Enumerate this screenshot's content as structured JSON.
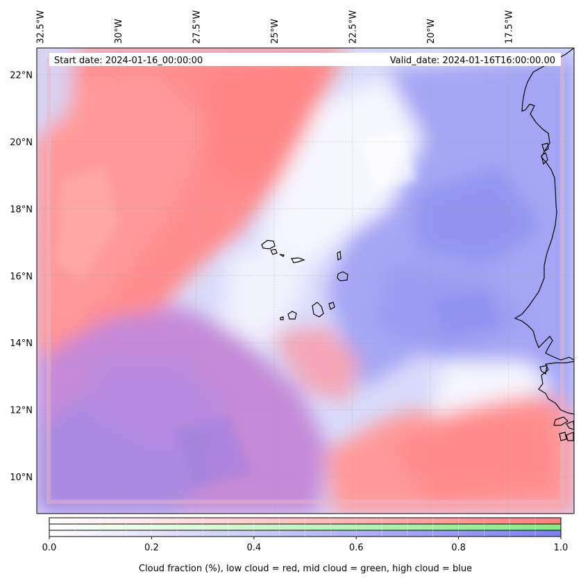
{
  "map": {
    "start_date": "Start date: 2024-01-16_00:00:00",
    "valid_date": "Valid_date: 2024-01-16T16:00:00.00",
    "lon_ticks": [
      "32.5°W",
      "30°W",
      "27.5°W",
      "25°W",
      "22.5°W",
      "20°W",
      "17.5°W"
    ],
    "lat_ticks": [
      "22°N",
      "20°N",
      "18°N",
      "16°N",
      "14°N",
      "12°N",
      "10°N"
    ],
    "extent": {
      "lon_min": -32.6,
      "lon_max": -15.4,
      "lat_min": 8.9,
      "lat_max": 22.8
    }
  },
  "colorbar": {
    "tick_labels": [
      "0.0",
      "0.2",
      "0.4",
      "0.6",
      "0.8",
      "1.0"
    ],
    "label": "Cloud fraction (%), low cloud = red, mid cloud = green, high cloud = blue",
    "colors": {
      "low": "#ff7f7f",
      "mid": "#80ee80",
      "high": "#7f7fee"
    }
  }
}
